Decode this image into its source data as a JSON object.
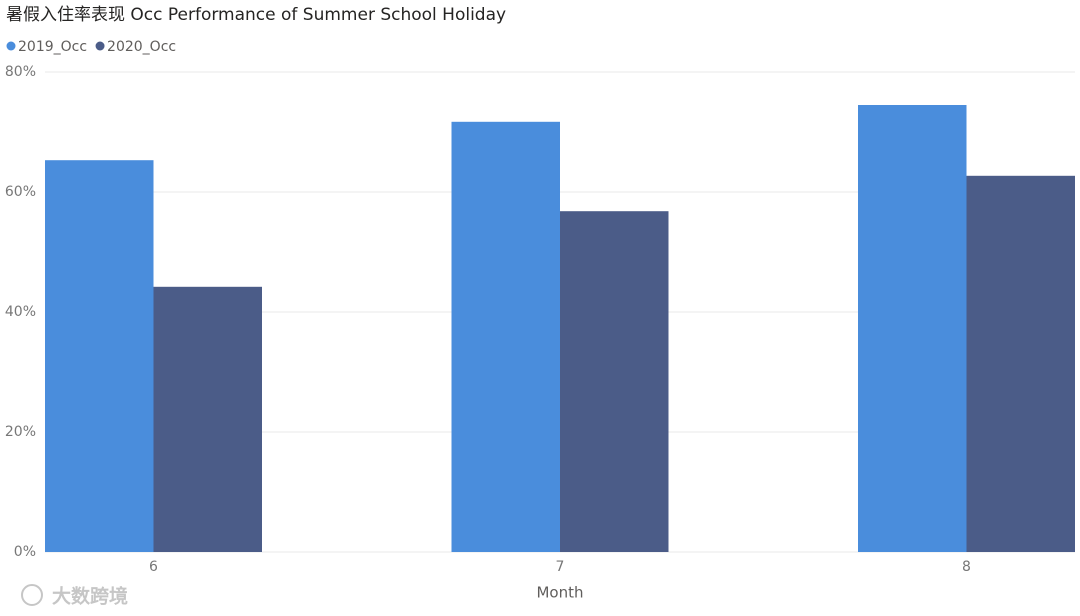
{
  "chart_data": {
    "type": "bar",
    "title": "暑假入住率表现 Occ Performance of Summer School Holiday",
    "x_label": "Month",
    "categories": [
      "6",
      "7",
      "8"
    ],
    "series": [
      {
        "name": "2019_Occ",
        "color": "#4a8ddc",
        "values": [
          65.3,
          71.7,
          74.5
        ]
      },
      {
        "name": "2020_Occ",
        "color": "#4b5c88",
        "values": [
          44.2,
          56.8,
          62.7
        ]
      }
    ],
    "ylim": [
      0,
      80
    ],
    "yticks": [
      {
        "value": 0,
        "label": "0%"
      },
      {
        "value": 20,
        "label": "20%"
      },
      {
        "value": 40,
        "label": "40%"
      },
      {
        "value": 60,
        "label": "60%"
      },
      {
        "value": 80,
        "label": "80%"
      }
    ],
    "grid": true,
    "legend": "top-left",
    "watermark": "大数跨境"
  }
}
